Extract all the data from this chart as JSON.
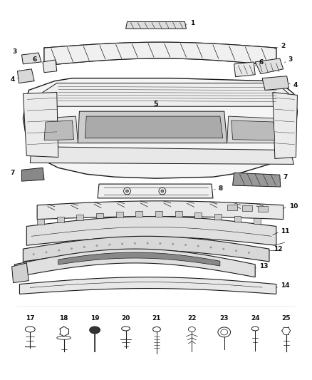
{
  "bg": "#ffffff",
  "lc": "#1a1a1a",
  "fig_w": 4.38,
  "fig_h": 5.33,
  "dpi": 100,
  "label_fs": 6.5,
  "label_color": "#111111"
}
